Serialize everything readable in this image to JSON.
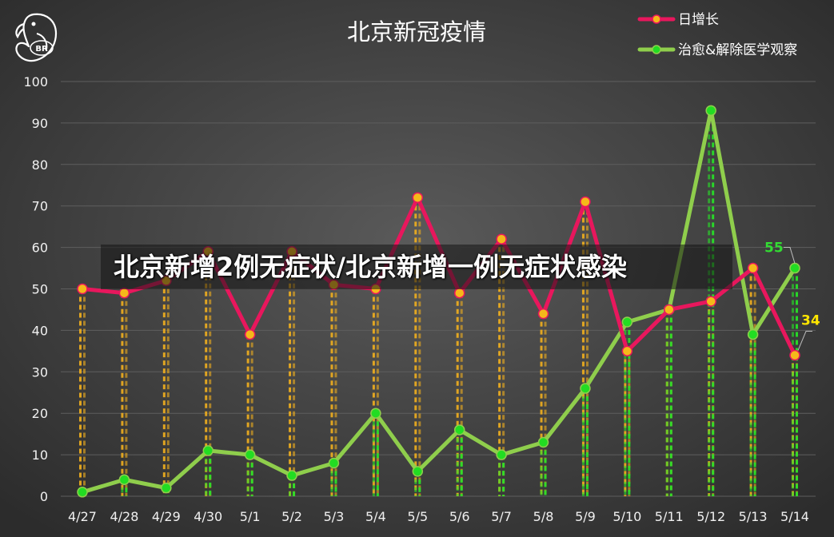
{
  "chart_data": {
    "type": "line",
    "title": "北京新冠疫情",
    "categories": [
      "4/27",
      "4/28",
      "4/29",
      "4/30",
      "5/1",
      "5/2",
      "5/3",
      "5/4",
      "5/5",
      "5/6",
      "5/7",
      "5/8",
      "5/9",
      "5/10",
      "5/11",
      "5/12",
      "5/13",
      "5/14"
    ],
    "ylim": [
      0,
      100
    ],
    "yticks": [
      0,
      10,
      20,
      30,
      40,
      50,
      60,
      70,
      80,
      90,
      100
    ],
    "grid": true,
    "legend_position": "top-right",
    "series": [
      {
        "name": "日增长",
        "color": "#e8175d",
        "marker_color": "#f5b81a",
        "values": [
          50,
          49,
          52,
          59,
          39,
          59,
          51,
          50,
          72,
          49,
          62,
          44,
          71,
          35,
          45,
          47,
          55,
          34
        ]
      },
      {
        "name": "治愈&解除医学观察",
        "color": "#8fce4c",
        "marker_color": "#22dd22",
        "values": [
          1,
          4,
          2,
          11,
          10,
          5,
          8,
          20,
          6,
          16,
          10,
          13,
          26,
          42,
          45,
          93,
          39,
          55
        ]
      }
    ],
    "annotations": [
      {
        "text": "55",
        "series": 1,
        "index": 17,
        "color": "#33dd33"
      },
      {
        "text": "34",
        "series": 0,
        "index": 17,
        "color": "#ffe600"
      }
    ]
  },
  "overlay": {
    "headline": "北京新增2例无症状/北京新增一例无症状感染"
  },
  "logo": {
    "text": "BR"
  }
}
